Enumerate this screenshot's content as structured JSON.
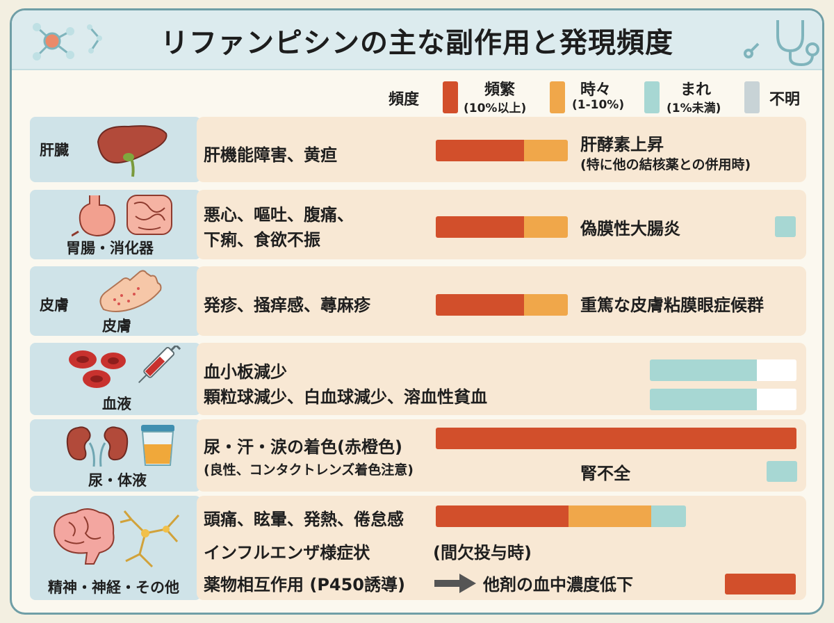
{
  "title": "リファンピシンの主な副作用と発現頻度",
  "colors": {
    "frequent": "#d24f2b",
    "sometimes": "#f0a74a",
    "rare": "#a7d7d3",
    "unknown": "#c8d3d6"
  },
  "legend": {
    "label": "頻度",
    "items": [
      {
        "name": "頻繁",
        "range": "(10%以上)"
      },
      {
        "name": "時々",
        "range": "(1-10%)"
      },
      {
        "name": "まれ",
        "range": "(1%未満)"
      },
      {
        "name": "不明",
        "range": ""
      }
    ]
  },
  "categories": [
    {
      "name": "肝臓",
      "icon": "liver-icon",
      "effects": [
        "肝機能障害、黄疸"
      ],
      "bar": {
        "frequent": 0.67,
        "sometimes": 0.33
      },
      "note": "肝酵素上昇",
      "note_sub": "(特に他の結核薬との併用時)"
    },
    {
      "name": "胃腸・消化器",
      "icon": "stomach-intestine-icon",
      "effects": [
        "悪心、嘔吐、腹痛、",
        "下痢、食欲不振"
      ],
      "bar": {
        "frequent": 0.67,
        "sometimes": 0.33
      },
      "note": "偽膜性大腸炎",
      "note_level": "rare"
    },
    {
      "name": "皮膚",
      "name_main": "皮膚",
      "icon": "rash-hand-icon",
      "effects": [
        "発疹、掻痒感、蕁麻疹"
      ],
      "bar": {
        "frequent": 0.67,
        "sometimes": 0.33
      },
      "note": "重篤な皮膚粘膜眼症候群"
    },
    {
      "name": "血液",
      "icon": "blood-cells-syringe-icon",
      "effects": [
        "血小板減少",
        "顆粒球減少、白血球減少、溶血性貧血"
      ],
      "bars": [
        {
          "rare": 0.73
        },
        {
          "rare": 0.73
        }
      ]
    },
    {
      "name": "尿・体液",
      "icon": "kidney-urine-cup-icon",
      "effects": [
        "尿・汗・涙の着色(赤橙色)"
      ],
      "effects_sub": "(良性、コンタクトレンズ着色注意)",
      "bar": {
        "frequent": 1.0
      },
      "note": "腎不全",
      "note_level": "rare"
    },
    {
      "name": "精神・神経・その他",
      "icon": "brain-neuron-icon",
      "effects": [
        "頭痛、眩暈、発熱、倦怠感",
        "インフルエンザ様症状",
        "薬物相互作用 (P450誘導)"
      ],
      "effects_extra": "(間欠投与時)",
      "result": "他剤の血中濃度低下",
      "bar": {
        "frequent": 0.53,
        "sometimes": 0.32,
        "rare": 0.13
      },
      "result_level": "frequent"
    }
  ]
}
